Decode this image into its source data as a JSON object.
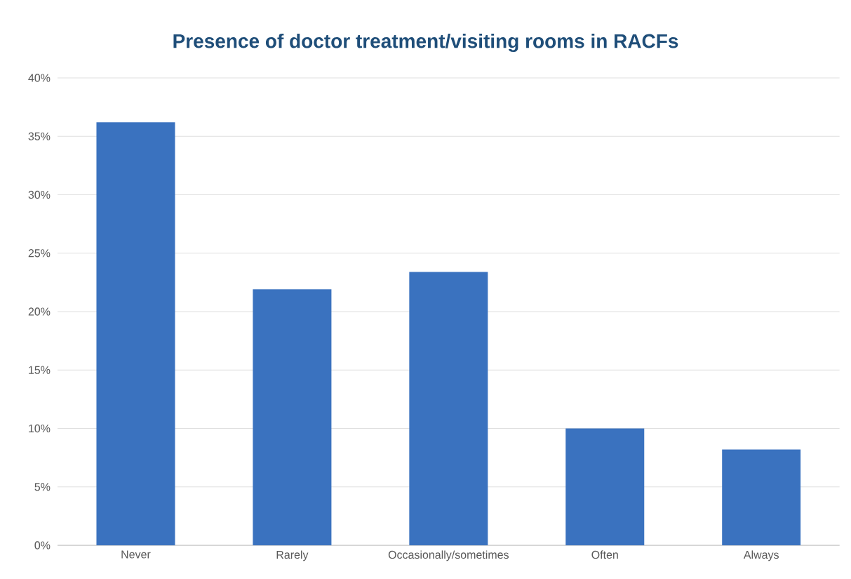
{
  "chart_data": {
    "type": "bar",
    "title": "Presence of doctor treatment/visiting rooms in RACFs",
    "categories": [
      "Never",
      "Rarely",
      "Occasionally/sometimes",
      "Often",
      "Always"
    ],
    "values": [
      36.2,
      21.9,
      23.4,
      10.0,
      8.2
    ],
    "color": "#3a72bf",
    "ylim": [
      0,
      40
    ],
    "yticks": [
      {
        "value": 0,
        "label": "0%"
      },
      {
        "value": 5,
        "label": "5%"
      },
      {
        "value": 10,
        "label": "10%"
      },
      {
        "value": 15,
        "label": "15%"
      },
      {
        "value": 20,
        "label": "20%"
      },
      {
        "value": 25,
        "label": "25%"
      },
      {
        "value": 30,
        "label": "30%"
      },
      {
        "value": 35,
        "label": "35%"
      },
      {
        "value": 40,
        "label": "40%"
      }
    ],
    "grid": "y"
  }
}
